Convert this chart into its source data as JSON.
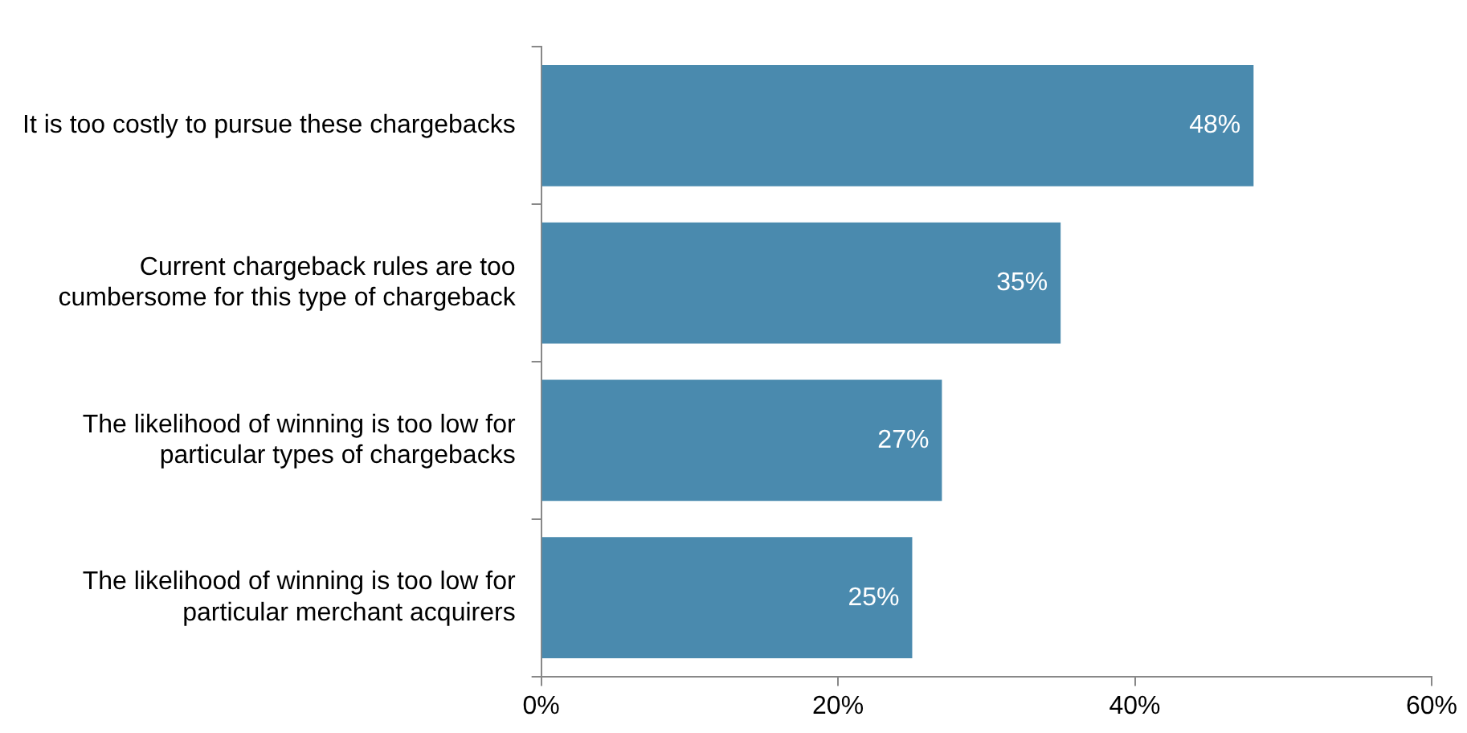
{
  "chart_data": {
    "type": "bar",
    "orientation": "horizontal",
    "categories": [
      "It is too costly to pursue these chargebacks",
      "Current chargeback rules are too cumbersome for this type of chargeback",
      "The likelihood of winning is too low for particular types of chargebacks",
      "The likelihood of winning is too low for particular merchant acquirers"
    ],
    "values": [
      48,
      35,
      27,
      25
    ],
    "value_labels": [
      "48%",
      "35%",
      "27%",
      "25%"
    ],
    "color": "#4a8aae",
    "xlim": [
      0,
      60
    ],
    "xticks": [
      {
        "value": 0,
        "label": "0%"
      },
      {
        "value": 20,
        "label": "20%"
      },
      {
        "value": 40,
        "label": "40%"
      },
      {
        "value": 60,
        "label": "60%"
      }
    ]
  }
}
